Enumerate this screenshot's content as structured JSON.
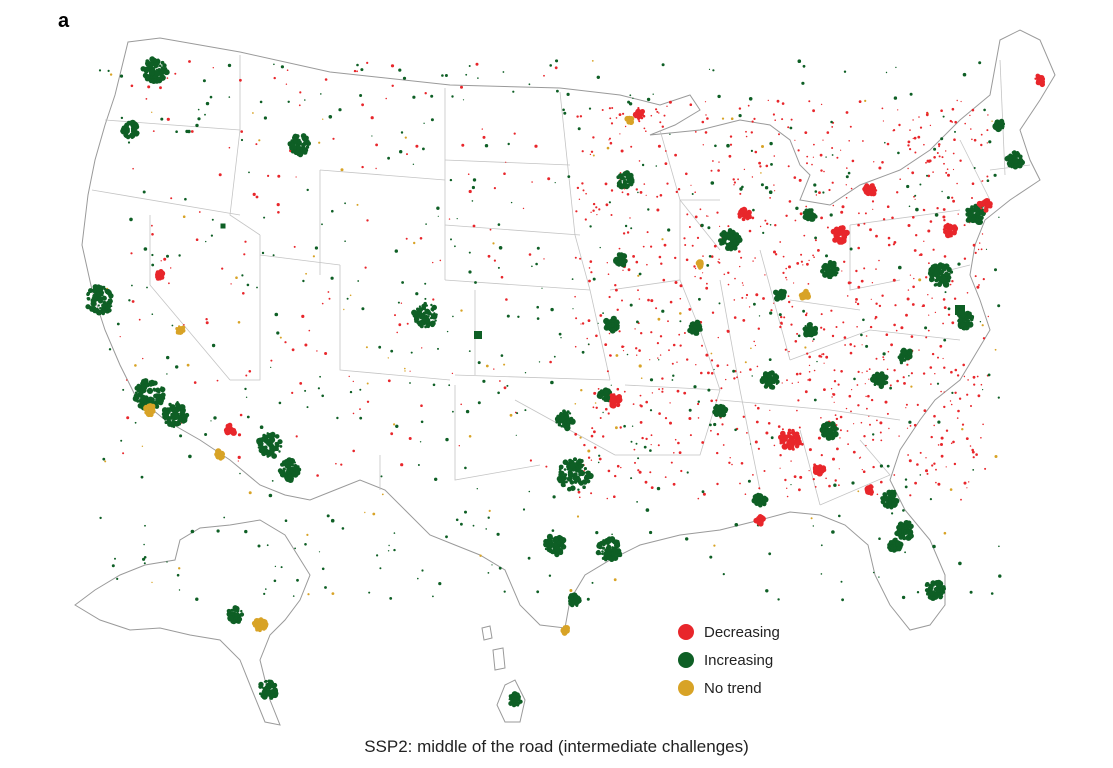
{
  "panel_label": "a",
  "caption": "SSP2: middle of the road (intermediate challenges)",
  "legend": [
    {
      "label": "Decreasing",
      "color": "#e8262b",
      "key": "decreasing"
    },
    {
      "label": "Increasing",
      "color": "#0e5f25",
      "key": "increasing"
    },
    {
      "label": "No trend",
      "color": "#d8a326",
      "key": "no_trend"
    }
  ],
  "colors": {
    "decreasing": "#e8262b",
    "increasing": "#0e5f25",
    "no_trend": "#d8a326",
    "state_borders": "#b8b8b8",
    "outline": "#888888"
  }
}
